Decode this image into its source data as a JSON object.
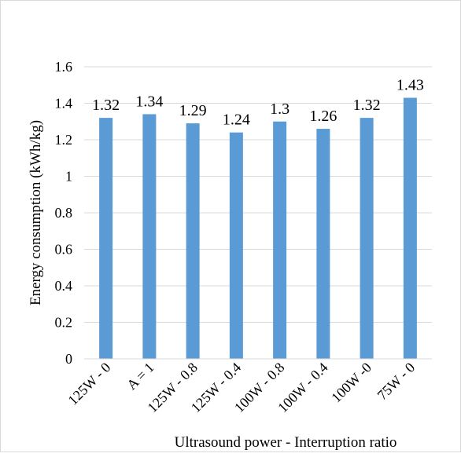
{
  "chart_data": {
    "type": "bar",
    "title": "",
    "xlabel": "Ultrasound power - Interruption ratio",
    "ylabel": "Energy consumption (kWh/kg)",
    "categories": [
      "125W - 0",
      "A = 1",
      "125W - 0.8",
      "125W - 0.4",
      "100W - 0.8",
      "100W - 0.4",
      "100W -0",
      "75W - 0"
    ],
    "values": [
      1.32,
      1.34,
      1.29,
      1.24,
      1.3,
      1.26,
      1.32,
      1.43
    ],
    "data_labels": [
      "1.32",
      "1.34",
      "1.29",
      "1.24",
      "1.3",
      "1.26",
      "1.32",
      "1.43"
    ],
    "ylim": [
      0,
      1.6
    ],
    "yticks": [
      "0",
      "0.2",
      "0.4",
      "0.6",
      "0.8",
      "1",
      "1.2",
      "1.4",
      "1.6"
    ],
    "grid": true,
    "legend": "none",
    "colors": {
      "bar": "#5b9bd5",
      "grid": "#d9d9d9"
    }
  }
}
